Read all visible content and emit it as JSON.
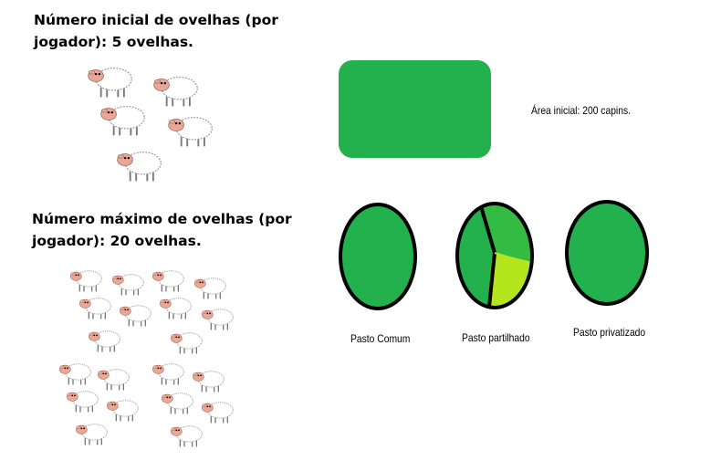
{
  "initial_heading": "Número inicial de ovelhas (por jogador): 5 ovelhas.",
  "max_heading": "Número máximo de ovelhas (por jogador): 20 ovelhas.",
  "area_label": "Área inicial: 200 capins.",
  "pastures": [
    {
      "label": "Pasto Comum"
    },
    {
      "label": "Pasto partilhado"
    },
    {
      "label": "Pasto privatizado"
    }
  ],
  "colors": {
    "pasture_green": "#22b14c",
    "light_green": "#33bb44",
    "lime": "#b5e61d",
    "sheep_face": "#e8a898"
  },
  "icons": {
    "sheep": "sheep-icon",
    "field": "grass-field-icon"
  }
}
